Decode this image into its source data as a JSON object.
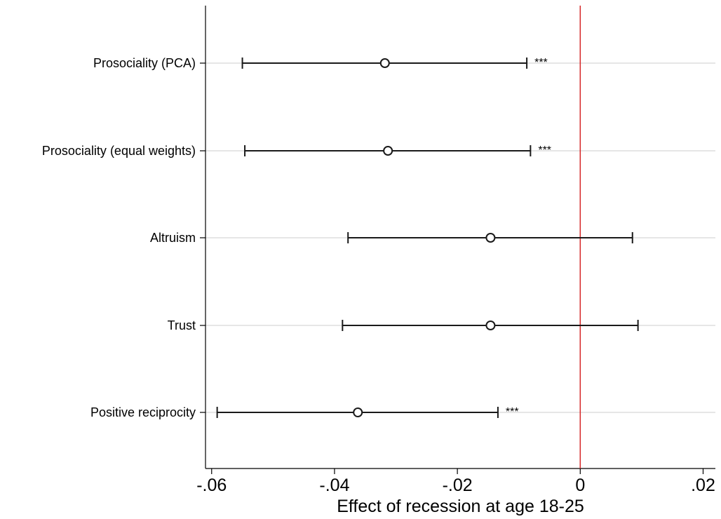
{
  "chart_data": {
    "type": "scatter",
    "subtype": "coefficient-plot",
    "xlabel": "Effect of recession at age 18-25",
    "ylabel": "",
    "xlim": [
      -0.061,
      0.022
    ],
    "x_ticks": [
      -0.06,
      -0.04,
      -0.02,
      0,
      0.02
    ],
    "x_tick_labels": [
      "-.06",
      "-.04",
      "-.02",
      "0",
      ".02"
    ],
    "reference_line": {
      "x": 0,
      "color": "#d62728"
    },
    "grid": "horizontal",
    "categories": [
      "Prosociality (PCA)",
      "Prosociality (equal weights)",
      "Altruism",
      "Trust",
      "Positive reciprocity"
    ],
    "series": [
      {
        "estimates": [
          -0.0318,
          -0.0313,
          -0.0146,
          -0.0146,
          -0.0362
        ],
        "ci_low": [
          -0.055,
          -0.0546,
          -0.0378,
          -0.0387,
          -0.0591
        ],
        "ci_high": [
          -0.0087,
          -0.0081,
          0.0085,
          0.0094,
          -0.0134
        ],
        "significance": [
          "***",
          "***",
          "",
          "",
          "***"
        ]
      }
    ]
  }
}
